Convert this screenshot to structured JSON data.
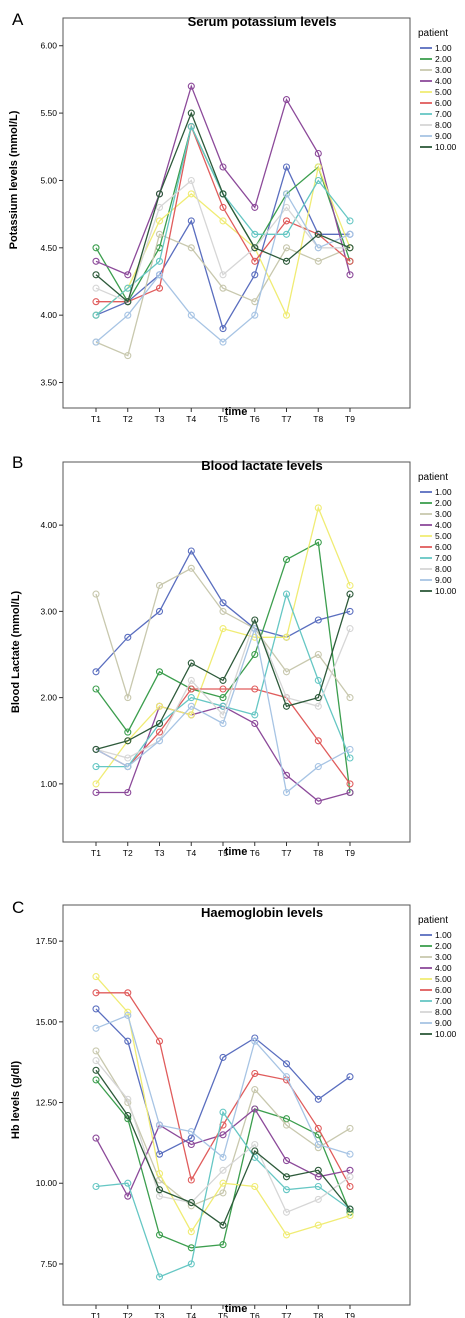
{
  "charts": [
    {
      "panel_letter": "A",
      "title": "Serum potassium levels",
      "ylabel": "Potassium levels (mmol/L)",
      "xlabel": "time",
      "ylim": [
        3.4,
        6.05
      ],
      "yticks": [
        "3.50",
        "4.00",
        "4.50",
        "5.00",
        "5.50",
        "6.00"
      ],
      "ytick_values": [
        3.5,
        4.0,
        4.5,
        5.0,
        5.5,
        6.0
      ],
      "categories": [
        "T1",
        "T2",
        "T3",
        "T4",
        "T5",
        "T6",
        "T7",
        "T8",
        "T9"
      ],
      "legend_title": "patient",
      "series": [
        {
          "name": "1.00",
          "color": "#5a6ebf",
          "values": [
            4.0,
            4.1,
            4.3,
            4.7,
            3.9,
            4.3,
            5.1,
            4.6,
            4.6
          ]
        },
        {
          "name": "2.00",
          "color": "#3c9e4e",
          "values": [
            4.5,
            4.1,
            4.5,
            5.4,
            4.9,
            4.5,
            4.9,
            5.1,
            4.4
          ]
        },
        {
          "name": "3.00",
          "color": "#c8c8ae",
          "values": [
            3.8,
            3.7,
            4.6,
            4.5,
            4.2,
            4.1,
            4.5,
            4.4,
            4.5
          ]
        },
        {
          "name": "4.00",
          "color": "#8c4a9a",
          "values": [
            4.4,
            4.3,
            4.9,
            5.7,
            5.1,
            4.8,
            5.6,
            5.2,
            4.3
          ]
        },
        {
          "name": "5.00",
          "color": "#f0ec74",
          "values": [
            4.0,
            4.2,
            4.7,
            4.9,
            4.7,
            4.5,
            4.0,
            5.1,
            4.5
          ]
        },
        {
          "name": "6.00",
          "color": "#e05c5c",
          "values": [
            4.1,
            4.1,
            4.2,
            5.4,
            4.8,
            4.4,
            4.7,
            4.6,
            4.4
          ]
        },
        {
          "name": "7.00",
          "color": "#66c7c4",
          "values": [
            4.0,
            4.2,
            4.4,
            5.4,
            4.9,
            4.6,
            4.6,
            5.0,
            4.7
          ]
        },
        {
          "name": "8.00",
          "color": "#d6d6d6",
          "values": [
            4.2,
            4.1,
            4.8,
            5.0,
            4.3,
            4.5,
            4.8,
            4.5,
            4.5
          ]
        },
        {
          "name": "9.00",
          "color": "#a7c4e4",
          "values": [
            3.8,
            4.0,
            4.3,
            4.0,
            3.8,
            4.0,
            4.9,
            4.5,
            4.6
          ]
        },
        {
          "name": "10.00",
          "color": "#2d5a3a",
          "values": [
            4.3,
            4.1,
            4.9,
            5.5,
            4.9,
            4.5,
            4.4,
            4.6,
            4.5
          ]
        }
      ]
    },
    {
      "panel_letter": "B",
      "title": "Blood lactate levels",
      "ylabel": "Blood Lactate (mmol/L)",
      "xlabel": "time",
      "ylim": [
        0.5,
        4.5
      ],
      "yticks": [
        "1.00",
        "2.00",
        "3.00",
        "4.00"
      ],
      "ytick_values": [
        1.0,
        2.0,
        3.0,
        4.0
      ],
      "categories": [
        "T1",
        "T2",
        "T3",
        "T4",
        "T5",
        "T6",
        "T7",
        "T8",
        "T9"
      ],
      "legend_title": "patient",
      "series": [
        {
          "name": "1.00",
          "color": "#5a6ebf",
          "values": [
            2.3,
            2.7,
            3.0,
            3.7,
            3.1,
            2.8,
            2.7,
            2.9,
            3.0
          ]
        },
        {
          "name": "2.00",
          "color": "#3c9e4e",
          "values": [
            2.1,
            1.6,
            2.3,
            2.1,
            2.0,
            2.5,
            3.6,
            3.8,
            0.9
          ]
        },
        {
          "name": "3.00",
          "color": "#c8c8ae",
          "values": [
            3.2,
            2.0,
            3.3,
            3.5,
            3.0,
            2.8,
            2.3,
            2.5,
            2.0
          ]
        },
        {
          "name": "4.00",
          "color": "#8c4a9a",
          "values": [
            0.9,
            0.9,
            1.9,
            1.8,
            1.9,
            1.7,
            1.1,
            0.8,
            0.9
          ]
        },
        {
          "name": "5.00",
          "color": "#f0ec74",
          "values": [
            1.0,
            1.5,
            1.9,
            1.8,
            2.8,
            2.7,
            2.7,
            4.2,
            3.3
          ]
        },
        {
          "name": "6.00",
          "color": "#e05c5c",
          "values": [
            1.4,
            1.2,
            1.6,
            2.1,
            2.1,
            2.1,
            2.0,
            1.5,
            1.0
          ]
        },
        {
          "name": "7.00",
          "color": "#66c7c4",
          "values": [
            1.2,
            1.2,
            1.7,
            2.0,
            1.9,
            1.8,
            3.2,
            2.2,
            1.3
          ]
        },
        {
          "name": "8.00",
          "color": "#d6d6d6",
          "values": [
            1.4,
            1.3,
            1.5,
            2.2,
            1.8,
            2.9,
            2.0,
            1.9,
            2.8
          ]
        },
        {
          "name": "9.00",
          "color": "#a7c4e4",
          "values": [
            1.4,
            1.2,
            1.5,
            1.9,
            1.7,
            2.8,
            0.9,
            1.2,
            1.4
          ]
        },
        {
          "name": "10.00",
          "color": "#2d5a3a",
          "values": [
            1.4,
            1.5,
            1.7,
            2.4,
            2.2,
            2.9,
            1.9,
            2.0,
            3.2
          ]
        }
      ]
    },
    {
      "panel_letter": "C",
      "title": "Haemoglobin levels",
      "ylabel": "Hb levels (g/dl)",
      "xlabel": "time",
      "ylim": [
        6.6,
        18.0
      ],
      "yticks": [
        "7.50",
        "10.00",
        "12.50",
        "15.00",
        "17.50"
      ],
      "ytick_values": [
        7.5,
        10.0,
        12.5,
        15.0,
        17.5
      ],
      "categories": [
        "T1",
        "T2",
        "T3",
        "T4",
        "T5",
        "T6",
        "T7",
        "T8",
        "T9"
      ],
      "legend_title": "patient",
      "series": [
        {
          "name": "1.00",
          "color": "#5a6ebf",
          "values": [
            15.4,
            14.4,
            10.9,
            11.4,
            13.9,
            14.5,
            13.7,
            12.6,
            13.3
          ]
        },
        {
          "name": "2.00",
          "color": "#3c9e4e",
          "values": [
            13.2,
            12.0,
            8.4,
            8.0,
            8.1,
            12.3,
            12.0,
            11.5,
            9.1
          ]
        },
        {
          "name": "3.00",
          "color": "#c8c8ae",
          "values": [
            14.1,
            12.5,
            10.1,
            9.3,
            9.7,
            12.9,
            11.8,
            11.1,
            11.7
          ]
        },
        {
          "name": "4.00",
          "color": "#8c4a9a",
          "values": [
            11.4,
            9.6,
            11.8,
            11.2,
            11.5,
            12.3,
            10.7,
            10.2,
            10.4
          ]
        },
        {
          "name": "5.00",
          "color": "#f0ec74",
          "values": [
            16.4,
            15.3,
            10.3,
            8.5,
            10.0,
            9.9,
            8.4,
            8.7,
            9.0
          ]
        },
        {
          "name": "6.00",
          "color": "#e05c5c",
          "values": [
            15.9,
            15.9,
            14.4,
            10.1,
            11.8,
            13.4,
            13.2,
            11.7,
            9.9
          ]
        },
        {
          "name": "7.00",
          "color": "#66c7c4",
          "values": [
            9.9,
            10.0,
            7.1,
            7.5,
            12.2,
            10.8,
            9.8,
            9.9,
            9.2
          ]
        },
        {
          "name": "8.00",
          "color": "#d6d6d6",
          "values": [
            13.8,
            12.6,
            9.6,
            9.4,
            10.4,
            11.2,
            9.1,
            9.5,
            10.2
          ]
        },
        {
          "name": "9.00",
          "color": "#a7c4e4",
          "values": [
            14.8,
            15.2,
            11.8,
            11.6,
            10.8,
            14.4,
            13.3,
            11.2,
            10.9
          ]
        },
        {
          "name": "10.00",
          "color": "#2d5a3a",
          "values": [
            13.5,
            12.1,
            9.8,
            9.4,
            8.7,
            11.0,
            10.2,
            10.4,
            9.2
          ]
        }
      ]
    }
  ]
}
